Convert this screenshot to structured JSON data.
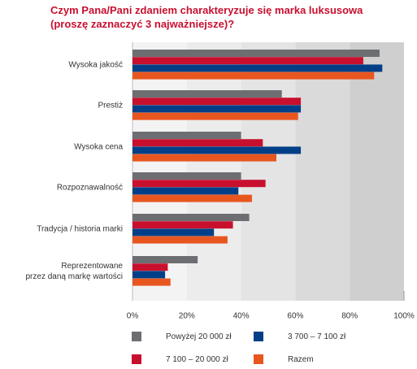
{
  "chart_data": {
    "type": "bar",
    "orientation": "horizontal",
    "title_lines": [
      "Czym Pana/Pani zdaniem charakteryzuje się marka luksusowa",
      "(proszę zaznaczyć 3 najważniejsze)?"
    ],
    "categories": [
      [
        "Wysoka jakość"
      ],
      [
        "Prestiż"
      ],
      [
        "Wysoka cena"
      ],
      [
        "Rozpoznawalność"
      ],
      [
        "Tradycja / historia marki"
      ],
      [
        "Reprezentowane",
        "przez daną markę wartości"
      ]
    ],
    "series": [
      {
        "name": "Powyżej 20 000 zł",
        "color": "#6d6e71",
        "values": [
          91,
          55,
          40,
          40,
          43,
          24
        ]
      },
      {
        "name": "7 100 – 20 000 zł",
        "color": "#c8102e",
        "values": [
          85,
          62,
          48,
          49,
          37,
          13
        ]
      },
      {
        "name": "3 700 – 7 100 zł",
        "color": "#003f87",
        "values": [
          92,
          62,
          62,
          39,
          30,
          12
        ]
      },
      {
        "name": "Razem",
        "color": "#e8561f",
        "values": [
          89,
          61,
          53,
          44,
          35,
          14
        ]
      }
    ],
    "xlim": [
      0,
      100
    ],
    "xticks": [
      "0%",
      "20%",
      "40%",
      "60%",
      "80%",
      "100%"
    ],
    "background_bands": [
      "#f3f3f3",
      "#ececec",
      "#e4e4e4",
      "#dadada",
      "#cfcfcf"
    ],
    "legend_placement": "bottom"
  }
}
